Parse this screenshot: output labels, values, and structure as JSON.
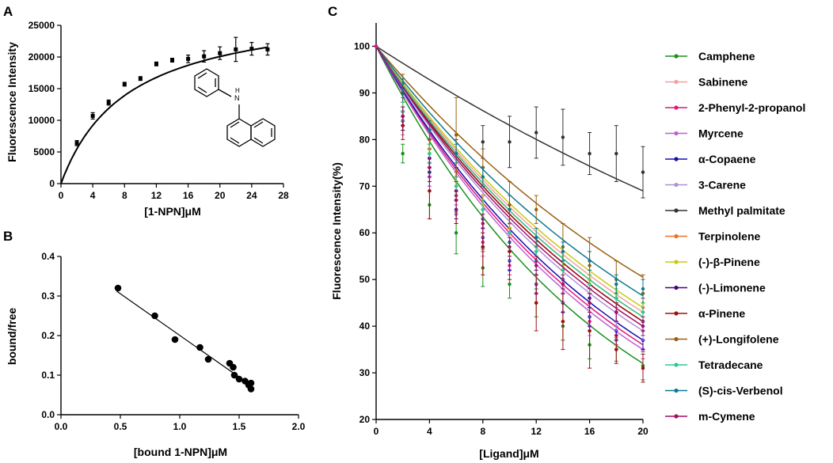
{
  "panels": {
    "A": {
      "letter": "A"
    },
    "B": {
      "letter": "B"
    },
    "C": {
      "letter": "C"
    }
  },
  "molecule": {
    "nh_label": "H\nN"
  },
  "chart_data": [
    {
      "id": "A",
      "type": "scatter",
      "title": "",
      "xlabel": "[1-NPN]μM",
      "ylabel": "Fluorescence Intensity",
      "xlim": [
        0,
        28
      ],
      "ylim": [
        0,
        25000
      ],
      "xticks": [
        0,
        4,
        8,
        12,
        16,
        20,
        24,
        28
      ],
      "yticks": [
        0,
        5000,
        10000,
        15000,
        20000,
        25000
      ],
      "x": [
        2,
        4,
        6,
        8,
        10,
        12,
        14,
        16,
        18,
        20,
        22,
        24,
        26
      ],
      "y": [
        6400,
        10700,
        12800,
        15700,
        16600,
        18900,
        19500,
        19700,
        20100,
        20600,
        21200,
        21300,
        21200
      ],
      "err": [
        400,
        500,
        400,
        300,
        300,
        300,
        300,
        600,
        900,
        1000,
        1900,
        1000,
        900
      ],
      "fit": {
        "model": "one-site binding",
        "bmax": 28500,
        "kd": 8.4
      }
    },
    {
      "id": "B",
      "type": "scatter",
      "title": "",
      "xlabel": "[bound 1-NPN]μM",
      "ylabel": "bound/free",
      "xlim": [
        0.0,
        2.0
      ],
      "ylim": [
        0.0,
        0.4
      ],
      "xticks": [
        0.0,
        0.5,
        1.0,
        1.5,
        2.0
      ],
      "yticks": [
        0.0,
        0.1,
        0.2,
        0.3,
        0.4
      ],
      "x": [
        0.48,
        0.79,
        0.96,
        1.17,
        1.24,
        1.42,
        1.45,
        1.46,
        1.5,
        1.55,
        1.58,
        1.6,
        1.6
      ],
      "y": [
        0.32,
        0.25,
        0.19,
        0.17,
        0.14,
        0.13,
        0.12,
        0.1,
        0.09,
        0.085,
        0.075,
        0.065,
        0.08
      ],
      "fit": {
        "model": "linear",
        "x_range": [
          0.47,
          1.61
        ],
        "y_at_start": 0.312,
        "y_at_end": 0.072
      }
    },
    {
      "id": "C",
      "type": "line",
      "title": "",
      "xlabel": "[Ligand]μM",
      "ylabel": "Fluorescence Intensity(%)",
      "xlim": [
        0,
        20
      ],
      "ylim": [
        20,
        105
      ],
      "xticks": [
        0,
        4,
        8,
        12,
        16,
        20
      ],
      "yticks": [
        20,
        30,
        40,
        50,
        60,
        70,
        80,
        90,
        100
      ],
      "x": [
        2,
        4,
        6,
        8,
        10,
        12,
        14,
        16,
        18,
        20
      ],
      "series": [
        {
          "name": "Camphene",
          "color": "#1a8f1a",
          "end": 32,
          "values": [
            77,
            66,
            60,
            52.5,
            49,
            45,
            40,
            36,
            35,
            31.5
          ],
          "err": [
            2,
            3,
            4.5,
            4,
            3,
            3,
            3,
            3,
            2.5,
            3
          ]
        },
        {
          "name": "Sabinene",
          "color": "#f4a0a0",
          "end": 43,
          "values": [
            86,
            78,
            72,
            68,
            62,
            57,
            54,
            50,
            46,
            43
          ],
          "err": [
            2,
            2,
            2,
            2,
            2,
            2,
            2,
            2,
            2,
            2
          ]
        },
        {
          "name": "2-Phenyl-2-propanol",
          "color": "#e0177c",
          "end": 36,
          "values": [
            84,
            72,
            64,
            58,
            53,
            49,
            45,
            41,
            38,
            35
          ],
          "err": [
            2,
            2,
            2,
            2,
            2,
            2,
            2,
            2,
            2,
            2
          ]
        },
        {
          "name": "Myrcene",
          "color": "#c060d0",
          "end": 35,
          "values": [
            83,
            72,
            64,
            57,
            52,
            47,
            43,
            40,
            37,
            35
          ],
          "err": [
            2,
            2,
            2,
            2,
            2,
            2,
            2,
            2,
            2,
            2
          ]
        },
        {
          "name": "α-Copaene",
          "color": "#1010b0",
          "end": 37,
          "values": [
            84,
            73,
            65,
            59,
            54,
            49,
            45,
            42,
            39,
            37
          ],
          "err": [
            2,
            2,
            2,
            2,
            2,
            2,
            2,
            2,
            2,
            2
          ]
        },
        {
          "name": "3-Carene",
          "color": "#b090d8",
          "end": 39,
          "values": [
            85,
            75,
            67,
            61,
            56,
            51,
            47,
            44,
            41,
            39
          ],
          "err": [
            2,
            2,
            2,
            2,
            2,
            2,
            2,
            2,
            2,
            2
          ]
        },
        {
          "name": "Methyl palmitate",
          "color": "#333333",
          "end": 69,
          "values": [
            90,
            76,
            77,
            79.5,
            79.5,
            81.5,
            80.5,
            77,
            77,
            73
          ],
          "err": [
            2,
            3,
            3,
            3.5,
            5.5,
            5.5,
            6,
            4.5,
            6,
            5.5
          ]
        },
        {
          "name": "Terpinolene",
          "color": "#f07020",
          "end": 42,
          "values": [
            86,
            77,
            70,
            66,
            61,
            57,
            52,
            49,
            46,
            44
          ],
          "err": [
            2,
            2,
            2,
            2,
            2,
            2,
            2,
            2,
            2,
            2
          ]
        },
        {
          "name": "(-)-β-Pinene",
          "color": "#c8c814",
          "end": 44,
          "values": [
            86,
            78,
            71,
            66,
            61,
            57,
            53,
            50,
            47,
            45
          ],
          "err": [
            2,
            2,
            2,
            2,
            2,
            2,
            2,
            2,
            2,
            2
          ]
        },
        {
          "name": "(-)-Limonene",
          "color": "#4b0082",
          "end": 41,
          "values": [
            85,
            76,
            69,
            63,
            58,
            54,
            50,
            46,
            43,
            41
          ],
          "err": [
            2,
            2,
            2,
            2,
            2,
            2,
            2,
            2,
            2,
            2
          ]
        },
        {
          "name": "α-Pinene",
          "color": "#a01010",
          "end": 41,
          "values": [
            83,
            69,
            68,
            57,
            56,
            45,
            41,
            39,
            35,
            31
          ],
          "err": [
            3,
            6,
            6,
            6,
            6,
            6,
            6,
            8,
            3,
            3
          ]
        },
        {
          "name": "(+)-Longifolene",
          "color": "#9a6010",
          "end": 50.5,
          "values": [
            92,
            80,
            81,
            74,
            66,
            65,
            57,
            53,
            50,
            47
          ],
          "err": [
            2,
            2,
            8,
            4,
            5,
            3,
            5,
            6,
            4,
            4
          ]
        },
        {
          "name": "Tetradecane",
          "color": "#30c890",
          "end": 42,
          "values": [
            86,
            77,
            70,
            65,
            60,
            56,
            52,
            49,
            46,
            43
          ],
          "err": [
            2,
            2,
            2,
            2,
            2,
            2,
            2,
            2,
            2,
            2
          ]
        },
        {
          "name": "(S)-cis-Verbenol",
          "color": "#0e7a90",
          "end": 46.5,
          "values": [
            91,
            82,
            77,
            72,
            65,
            59,
            56,
            54,
            49,
            48
          ],
          "err": [
            2,
            2,
            2,
            2,
            3,
            2,
            2,
            2,
            2,
            2
          ]
        },
        {
          "name": "m-Cymene",
          "color": "#a01060",
          "end": 40,
          "values": [
            85,
            74,
            67,
            62,
            57,
            53,
            49,
            45,
            43,
            40
          ],
          "err": [
            2,
            2,
            2,
            2,
            2,
            2,
            2,
            2,
            2,
            2
          ]
        }
      ]
    }
  ]
}
